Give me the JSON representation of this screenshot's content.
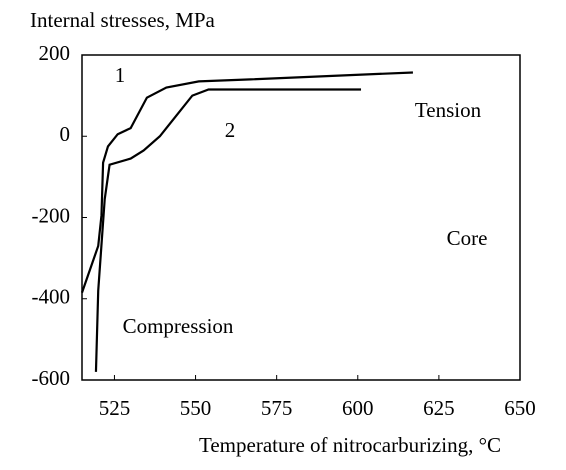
{
  "chart_data": {
    "type": "line",
    "title": "Internal stresses, MPa",
    "x_label": "Temperature of nitrocarburizing, °C",
    "annotations": [
      "Tension",
      "Core",
      "Compression"
    ],
    "xlim": [
      515,
      650
    ],
    "xticks": [
      525,
      550,
      575,
      600,
      625,
      650
    ],
    "ylim": [
      -600,
      200
    ],
    "yticks": [
      -600,
      -400,
      -200,
      0,
      200
    ],
    "series": [
      {
        "name": "1",
        "color": "#000000",
        "x": [
          515,
          520,
          521,
          521.5,
          523,
          526,
          530,
          535,
          541,
          551,
          567,
          617
        ],
        "values": [
          -385,
          -270,
          -195,
          -65,
          -25,
          5,
          20,
          95,
          120,
          135,
          140,
          157
        ]
      },
      {
        "name": "2",
        "color": "#000000",
        "x": [
          519.3,
          520,
          522,
          523.5,
          530,
          534,
          539,
          544,
          549,
          554,
          601
        ],
        "values": [
          -580,
          -380,
          -155,
          -70,
          -55,
          -35,
          0,
          50,
          100,
          115,
          115
        ]
      }
    ]
  }
}
